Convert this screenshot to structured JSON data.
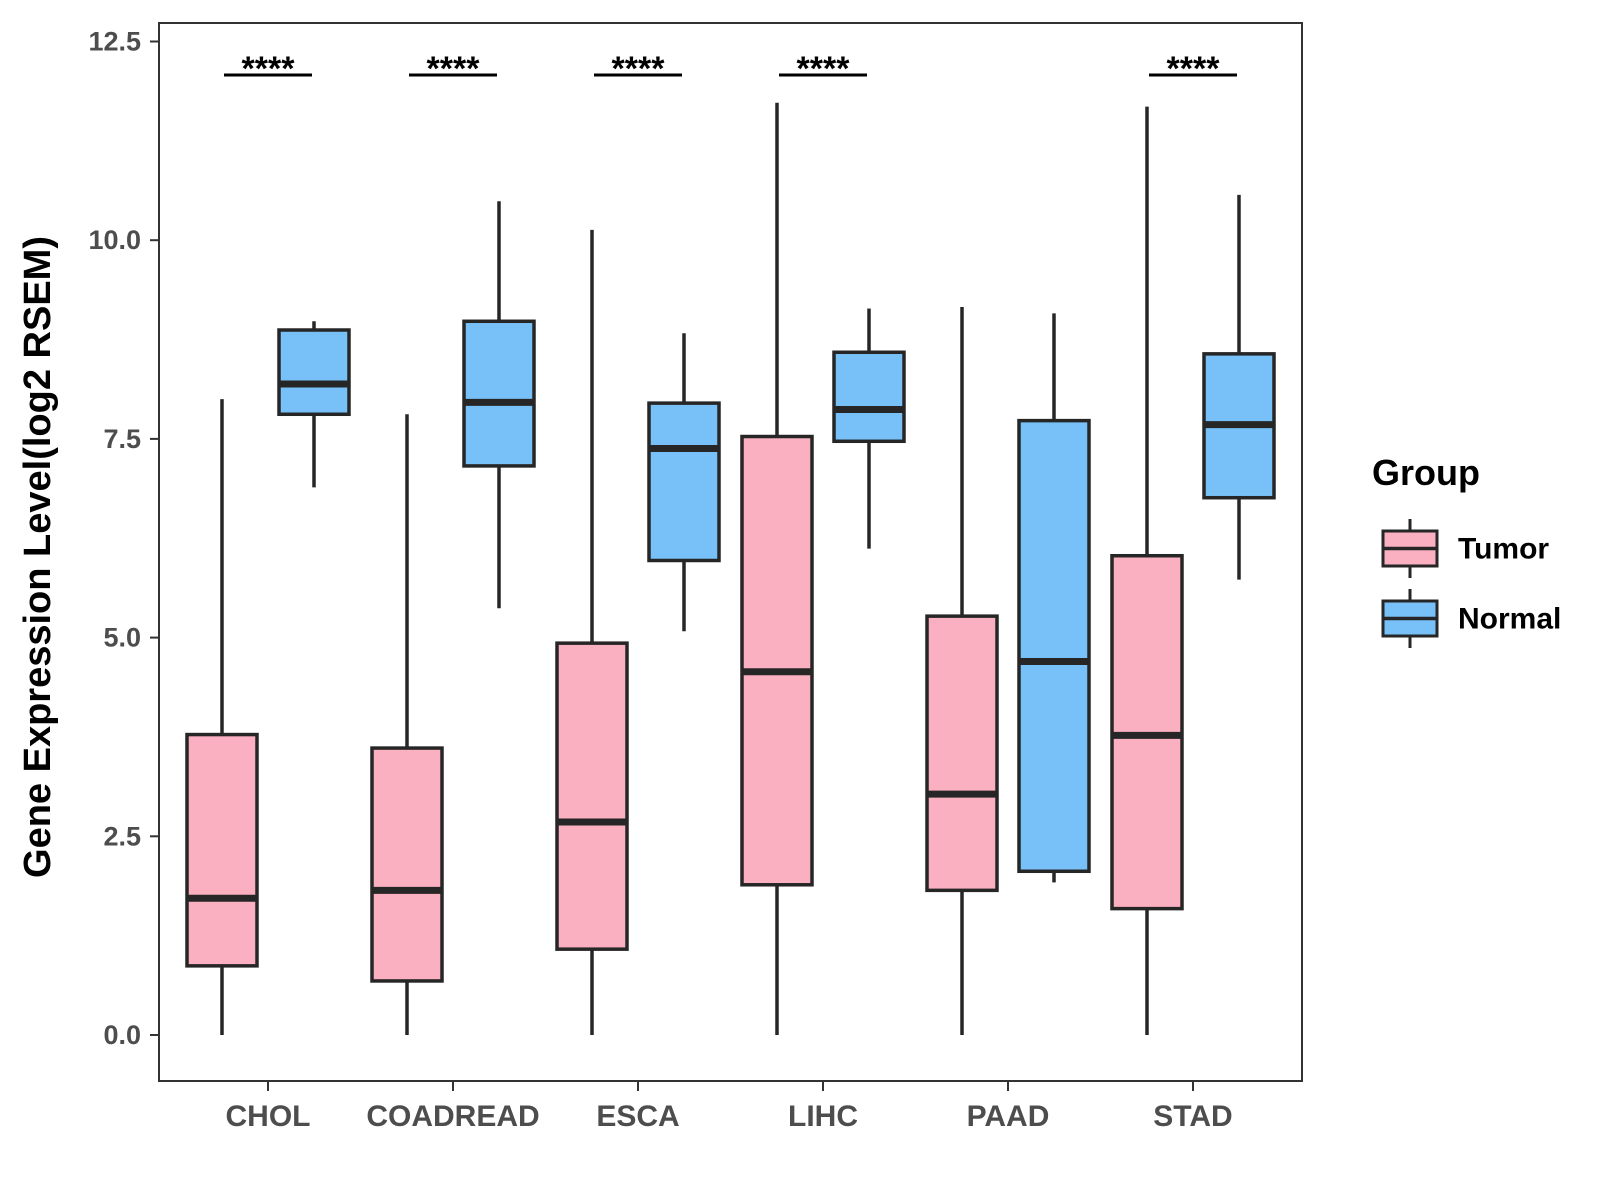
{
  "chart_data": {
    "type": "boxplot",
    "title": "",
    "xlabel": "",
    "ylabel": "Gene Expression Level(log2 RSEM)",
    "ylim": [
      -0.6,
      12.75
    ],
    "yticks": [
      0.0,
      2.5,
      5.0,
      7.5,
      10.0,
      12.5
    ],
    "ytick_labels": [
      "0.0",
      "2.5",
      "5.0",
      "7.5",
      "10.0",
      "12.5"
    ],
    "grid": false,
    "categories": [
      "CHOL",
      "COADREAD",
      "ESCA",
      "LIHC",
      "PAAD",
      "STAD"
    ],
    "legend": {
      "title": "Group",
      "position": "right",
      "entries": [
        "Tumor",
        "Normal"
      ]
    },
    "series": [
      {
        "name": "Tumor",
        "color": "#fbb0c2",
        "boxes": [
          {
            "min": 0.0,
            "q1": 0.87,
            "median": 1.72,
            "q3": 3.78,
            "max": 8.0
          },
          {
            "min": 0.0,
            "q1": 0.68,
            "median": 1.82,
            "q3": 3.61,
            "max": 7.81
          },
          {
            "min": 0.0,
            "q1": 1.08,
            "median": 2.68,
            "q3": 4.93,
            "max": 10.13
          },
          {
            "min": 0.0,
            "q1": 1.89,
            "median": 4.57,
            "q3": 7.53,
            "max": 11.73
          },
          {
            "min": 0.0,
            "q1": 1.82,
            "median": 3.03,
            "q3": 5.27,
            "max": 9.16
          },
          {
            "min": 0.0,
            "q1": 1.59,
            "median": 3.77,
            "q3": 6.03,
            "max": 11.68
          }
        ]
      },
      {
        "name": "Normal",
        "color": "#77c1f8",
        "boxes": [
          {
            "min": 6.89,
            "q1": 7.81,
            "median": 8.19,
            "q3": 8.87,
            "max": 8.98
          },
          {
            "min": 5.37,
            "q1": 7.16,
            "median": 7.96,
            "q3": 8.98,
            "max": 10.49
          },
          {
            "min": 5.08,
            "q1": 5.97,
            "median": 7.38,
            "q3": 7.95,
            "max": 8.83
          },
          {
            "min": 6.12,
            "q1": 7.47,
            "median": 7.87,
            "q3": 8.59,
            "max": 9.14
          },
          {
            "min": 1.92,
            "q1": 2.06,
            "median": 4.7,
            "q3": 7.73,
            "max": 9.08
          },
          {
            "min": 5.73,
            "q1": 6.76,
            "median": 7.68,
            "q3": 8.57,
            "max": 10.57
          }
        ]
      }
    ],
    "significance": [
      "****",
      "****",
      "****",
      "****",
      "",
      "****"
    ]
  }
}
